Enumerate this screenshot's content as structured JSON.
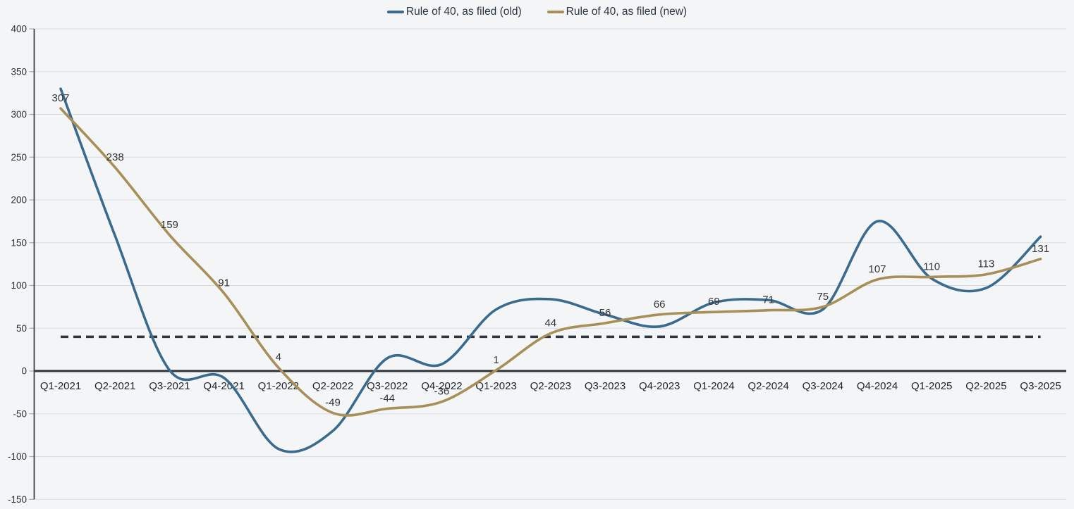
{
  "chart": {
    "background": "#f3f5f7",
    "legend": [
      {
        "label": "Rule of 40, as filed (old)",
        "color": "#3a6b8f"
      },
      {
        "label": "Rule of 40, as filed (new)",
        "color": "#a88f58"
      }
    ]
  },
  "chart_data": {
    "type": "line",
    "title": "",
    "curve": "smooth-spline",
    "grid": "horizontal",
    "legend_position": "top-center",
    "categories": [
      "Q1-2021",
      "Q2-2021",
      "Q3-2021",
      "Q4-2021",
      "Q1-2022",
      "Q2-2022",
      "Q3-2022",
      "Q4-2022",
      "Q1-2023",
      "Q2-2023",
      "Q3-2023",
      "Q4-2023",
      "Q1-2024",
      "Q2-2024",
      "Q3-2024",
      "Q4-2024",
      "Q1-2025",
      "Q2-2025",
      "Q3-2025"
    ],
    "series": [
      {
        "name": "Rule of 40, as filed (old)",
        "color": "#3a6b8f",
        "show_point_labels": false,
        "values": [
          330,
          158,
          1,
          -8,
          -91,
          -70,
          15,
          8,
          72,
          84,
          66,
          52,
          80,
          83,
          72,
          175,
          108,
          97,
          157
        ]
      },
      {
        "name": "Rule of 40, as filed (new)",
        "color": "#a88f58",
        "show_point_labels": true,
        "values": [
          307,
          238,
          159,
          91,
          4,
          -49,
          -44,
          -36,
          1,
          44,
          56,
          66,
          69,
          71,
          75,
          107,
          110,
          113,
          131
        ]
      }
    ],
    "point_labels": [
      "307",
      "238",
      "159",
      "91",
      "4",
      "-49",
      "-44",
      "-36",
      "1",
      "44",
      "56",
      "66",
      "69",
      "71",
      "75",
      "107",
      "110",
      "113",
      "131"
    ],
    "ylim": [
      -150,
      400
    ],
    "yticks": [
      400,
      350,
      300,
      250,
      200,
      150,
      100,
      50,
      0,
      -50,
      -100,
      -150
    ],
    "threshold_line": {
      "value": 40,
      "style": "dashed",
      "color": "#2e353c"
    },
    "colors": {
      "gridline": "#d9dcdf",
      "zero_line": "#2e3338",
      "axis_line": "#3a3f44",
      "tick": "#aab0b6",
      "axis_text": "#2c2f33",
      "category_text": "#1f2328",
      "data_label_text": "#333333"
    }
  }
}
